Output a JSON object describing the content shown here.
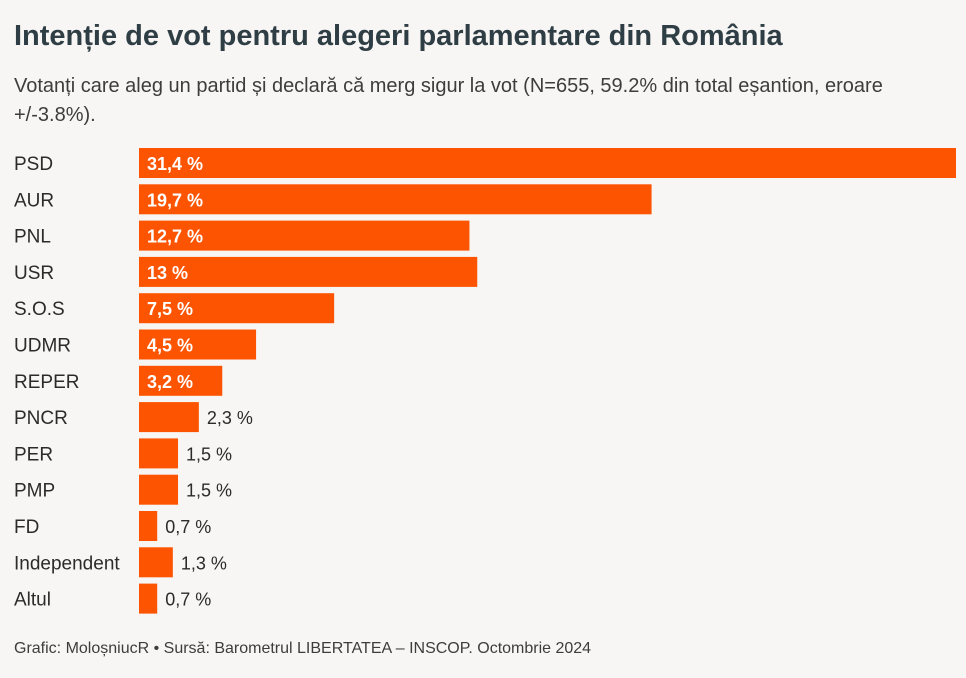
{
  "title": "Intenție de vot pentru alegeri parlamentare din România",
  "subtitle": "Votanți care aleg un partid și declară că merg sigur la vot (N=655, 59.2% din total eșantion, eroare +/-3.8%).",
  "footer": "Grafic: MoloșniucR • Sursă: Barometrul LIBERTATEA – INSCOP. Octombrie 2024",
  "colors": {
    "bar": "#fd5401",
    "label_inside": "#ffffff",
    "label_outside": "#2b2b2b"
  },
  "chart_data": {
    "type": "bar",
    "orientation": "horizontal",
    "categories": [
      "PSD",
      "AUR",
      "PNL",
      "USR",
      "S.O.S",
      "UDMR",
      "REPER",
      "PNCR",
      "PER",
      "PMP",
      "FD",
      "Independent",
      "Altul"
    ],
    "values": [
      31.4,
      19.7,
      12.7,
      13,
      7.5,
      4.5,
      3.2,
      2.3,
      1.5,
      1.5,
      0.7,
      1.3,
      0.7
    ],
    "value_labels": [
      "31,4 %",
      "19,7 %",
      "12,7 %",
      "13 %",
      "7,5 %",
      "4,5 %",
      "3,2 %",
      "2,3 %",
      "1,5 %",
      "1,5 %",
      "0,7 %",
      "1,3 %",
      "0,7 %"
    ],
    "xlim": [
      0,
      31.4
    ],
    "grid": false,
    "legend": "none"
  }
}
